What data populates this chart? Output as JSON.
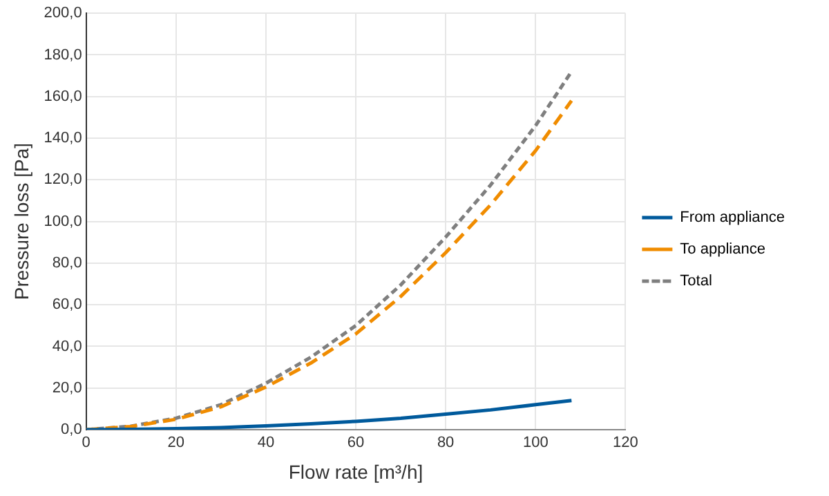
{
  "chart_data": {
    "type": "line",
    "xlabel": "Flow rate [m³/h]",
    "ylabel": "Pressure loss [Pa]",
    "x": [
      0,
      10,
      20,
      30,
      40,
      50,
      60,
      70,
      80,
      90,
      100,
      108
    ],
    "series": [
      {
        "name": "From appliance",
        "color": "#005a9c",
        "line_style": "solid",
        "values": [
          0,
          0.2,
          0.5,
          1,
          1.8,
          2.8,
          4,
          5.5,
          7.5,
          9.5,
          12,
          14
        ]
      },
      {
        "name": "To appliance",
        "color": "#f08c00",
        "line_style": "dashed",
        "values": [
          0,
          1.5,
          5,
          11,
          20.5,
          32,
          46,
          64,
          85,
          108,
          134,
          158
        ]
      },
      {
        "name": "Total",
        "color": "#7f7f7f",
        "line_style": "dotted",
        "values": [
          0,
          1.7,
          5.5,
          12,
          22.3,
          34.8,
          50,
          69.5,
          92.5,
          117.5,
          146,
          172
        ]
      }
    ],
    "xlim": [
      0,
      120
    ],
    "xticks": [
      0,
      20,
      40,
      60,
      80,
      100,
      120
    ],
    "ylim": [
      0,
      200
    ],
    "yticks": [
      {
        "value": 0,
        "label": "0,0"
      },
      {
        "value": 20,
        "label": "20,0"
      },
      {
        "value": 40,
        "label": "40,0"
      },
      {
        "value": 60,
        "label": "60,0"
      },
      {
        "value": 80,
        "label": "80,0"
      },
      {
        "value": 100,
        "label": "100,0"
      },
      {
        "value": 120,
        "label": "120,0"
      },
      {
        "value": 140,
        "label": "140,0"
      },
      {
        "value": 160,
        "label": "160,0"
      },
      {
        "value": 180,
        "label": "180,0"
      },
      {
        "value": 200,
        "label": "200,0"
      }
    ],
    "grid": true,
    "legend": "right",
    "marker": "none"
  }
}
